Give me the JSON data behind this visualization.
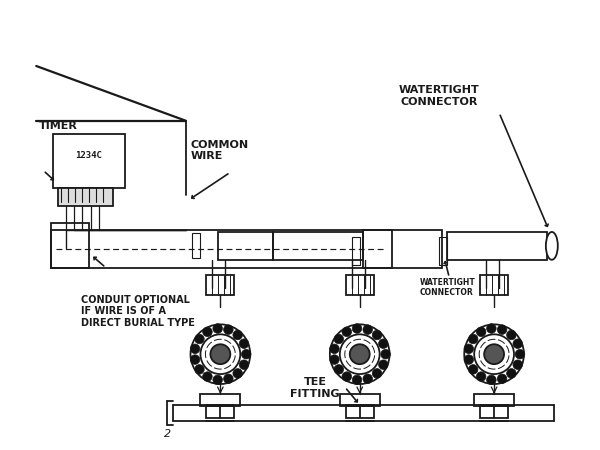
{
  "bg_color": "#ffffff",
  "lc": "#1a1a1a",
  "lw": 1.3,
  "labels": {
    "timer": "TIMER",
    "common_wire": "COMMON\nWIRE",
    "watertight_top": "WATERTIGHT\nCONNECTOR",
    "watertight_small": "WATERTIGHT\nCONNECTOR",
    "conduit": "CONDUIT OPTIONAL\nIF WIRE IS OF A\nDIRECT BURIAL TYPE",
    "tee_fitting": "TEE\nFITTING",
    "timer_code": "1234C"
  },
  "xlim": [
    0,
    6
  ],
  "ylim": [
    0,
    4.5
  ],
  "figsize": [
    6.0,
    4.5
  ],
  "dpi": 100
}
